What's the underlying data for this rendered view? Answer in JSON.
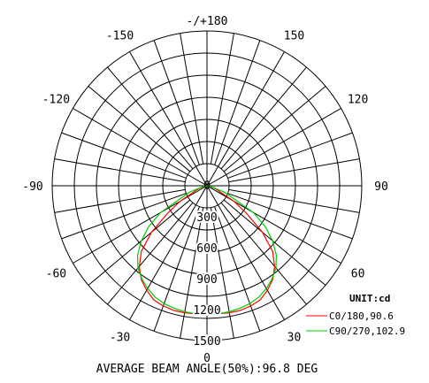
{
  "chart_data": {
    "type": "polar",
    "unit_label": "UNIT:cd",
    "footer": "AVERAGE BEAM ANGLE(50%):96.8 DEG",
    "radial_range": [
      0,
      1500
    ],
    "radial_ticks": [
      {
        "value": 0,
        "label": "0"
      },
      {
        "value": 300,
        "label": "300"
      },
      {
        "value": 600,
        "label": "600"
      },
      {
        "value": 900,
        "label": "900"
      },
      {
        "value": 1200,
        "label": "1200"
      },
      {
        "value": 1500,
        "label": "1500"
      }
    ],
    "angle_labels": [
      {
        "angle": 180,
        "label": "-/+180"
      },
      {
        "angle": 150,
        "label": "150"
      },
      {
        "angle": 120,
        "label": "120"
      },
      {
        "angle": 90,
        "label": "90"
      },
      {
        "angle": 60,
        "label": "60"
      },
      {
        "angle": 30,
        "label": "30"
      },
      {
        "angle": 0,
        "label": "0"
      },
      {
        "angle": -30,
        "label": "-30"
      },
      {
        "angle": -60,
        "label": "-60"
      },
      {
        "angle": -90,
        "label": "-90"
      },
      {
        "angle": -120,
        "label": "-120"
      },
      {
        "angle": -150,
        "label": "-150"
      }
    ],
    "series": [
      {
        "name": "C0/180,90.6",
        "color": "#ff0000",
        "angles": [
          -90,
          -80,
          -70,
          -60,
          -55,
          -50,
          -45,
          -40,
          -35,
          -30,
          -25,
          -20,
          -15,
          -10,
          -5,
          0,
          5,
          10,
          15,
          20,
          25,
          30,
          35,
          40,
          45,
          50,
          55,
          60,
          70,
          80,
          90
        ],
        "values": [
          0,
          20,
          90,
          300,
          470,
          700,
          900,
          1020,
          1110,
          1170,
          1220,
          1240,
          1250,
          1250,
          1245,
          1240,
          1245,
          1250,
          1250,
          1240,
          1220,
          1170,
          1110,
          1020,
          900,
          700,
          470,
          300,
          90,
          20,
          0
        ]
      },
      {
        "name": "C90/270,102.9",
        "color": "#00cc00",
        "angles": [
          -90,
          -80,
          -70,
          -60,
          -55,
          -50,
          -45,
          -40,
          -35,
          -30,
          -25,
          -20,
          -15,
          -10,
          -5,
          0,
          5,
          10,
          15,
          20,
          25,
          30,
          35,
          40,
          45,
          50,
          55,
          60,
          70,
          80,
          90
        ],
        "values": [
          0,
          30,
          180,
          520,
          690,
          830,
          950,
          1040,
          1100,
          1150,
          1190,
          1215,
          1230,
          1240,
          1245,
          1245,
          1245,
          1240,
          1230,
          1215,
          1190,
          1150,
          1100,
          1040,
          950,
          830,
          690,
          520,
          180,
          30,
          0
        ]
      }
    ]
  }
}
